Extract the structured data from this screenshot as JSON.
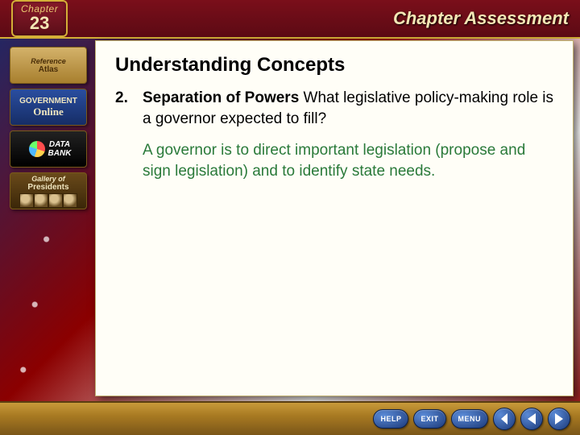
{
  "banner": {
    "chapter_label": "Chapter",
    "chapter_number": "23",
    "title": "Chapter Assessment",
    "bg_gradient": [
      "#7a0f1a",
      "#5c0a14"
    ],
    "accent_color": "#d4af37"
  },
  "sidebar": {
    "items": [
      {
        "line1": "Reference",
        "line2": "Atlas"
      },
      {
        "line1": "GOVERNMENT",
        "line2": "Online"
      },
      {
        "line1": "DATA",
        "line2": "BANK"
      },
      {
        "line1": "Gallery of",
        "line2": "Presidents"
      }
    ]
  },
  "content": {
    "heading": "Understanding Concepts",
    "question_number": "2.",
    "question_topic": "Separation of Powers",
    "question_text": "  What legislative policy-making role is a governor expected to fill?",
    "answer": "A governor is to direct important legislation (propose and sign legislation) and to identify state needs.",
    "bg_color": "#fffef7",
    "answer_color": "#2a7a3a",
    "heading_fontsize": 24,
    "body_fontsize": 19
  },
  "nav": {
    "pills": [
      "HELP",
      "EXIT",
      "MENU"
    ],
    "pill_bg": [
      "#5a8ad6",
      "#1c3a7a"
    ],
    "bar_gradient": [
      "#c89a3a",
      "#a87a22",
      "#7a5618"
    ]
  }
}
